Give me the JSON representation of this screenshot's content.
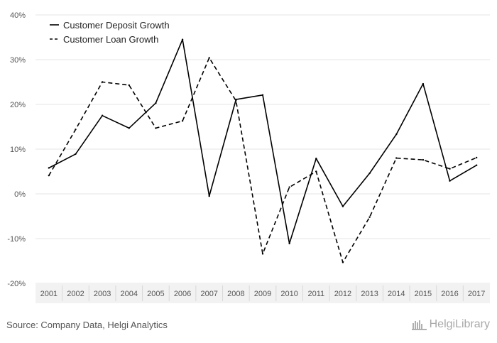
{
  "chart_data": {
    "type": "line",
    "categories": [
      "2001",
      "2002",
      "2003",
      "2004",
      "2005",
      "2006",
      "2007",
      "2008",
      "2009",
      "2010",
      "2011",
      "2012",
      "2013",
      "2014",
      "2015",
      "2016",
      "2017"
    ],
    "series": [
      {
        "name": "Customer Deposit Growth",
        "style": "solid",
        "values": [
          5.8,
          8.9,
          17.5,
          14.7,
          20.3,
          34.5,
          -0.5,
          21.1,
          22.1,
          -11.1,
          7.9,
          -2.8,
          4.6,
          13.3,
          24.6,
          2.9,
          6.4
        ]
      },
      {
        "name": "Customer Loan Growth",
        "style": "dashed",
        "values": [
          4.1,
          14.4,
          25.0,
          24.3,
          14.7,
          16.3,
          30.4,
          20.8,
          -13.4,
          1.5,
          5.0,
          -15.3,
          -5.2,
          8.0,
          7.6,
          5.6,
          8.1
        ]
      }
    ],
    "y_ticks": [
      "40%",
      "30%",
      "20%",
      "10%",
      "0%",
      "-10%",
      "-20%"
    ],
    "y_tick_values": [
      40,
      30,
      20,
      10,
      0,
      -10,
      -20
    ],
    "ylim": [
      -20,
      40
    ],
    "grid": "horizontal",
    "legend_position": "top-left",
    "colors": {
      "line": "#000000",
      "grid": "#e6e6e6",
      "axis_band": "#f2f2f2"
    }
  },
  "footer": {
    "source": "Source: Company Data, Helgi Analytics",
    "brand": "HelgiLibrary"
  }
}
